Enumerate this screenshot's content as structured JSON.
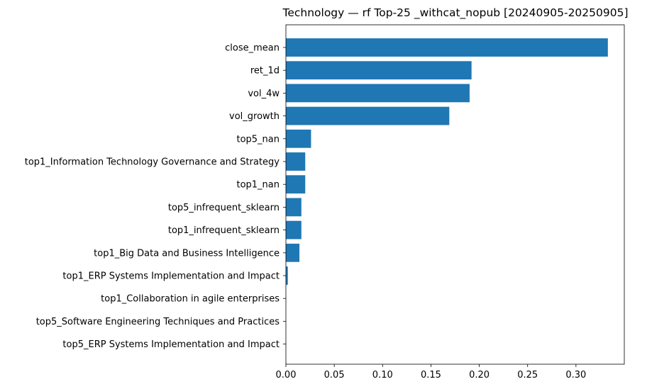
{
  "chart_data": {
    "type": "bar",
    "orientation": "horizontal",
    "title": "Technology — rf Top-25 _withcat_nopub [20240905-20250905]",
    "xlabel": "",
    "ylabel": "",
    "xlim": [
      0,
      0.35
    ],
    "xticks": [
      "0.00",
      "0.05",
      "0.10",
      "0.15",
      "0.20",
      "0.25",
      "0.30"
    ],
    "grid": false,
    "bar_color": "#1f77b4",
    "categories": [
      "close_mean",
      "ret_1d",
      "vol_4w",
      "vol_growth",
      "top5_nan",
      "top1_Information Technology Governance and Strategy",
      "top1_nan",
      "top5_infrequent_sklearn",
      "top1_infrequent_sklearn",
      "top1_Big Data and Business Intelligence",
      "top1_ERP Systems Implementation and Impact",
      "top1_Collaboration in agile enterprises",
      "top5_Software Engineering Techniques and Practices",
      "top5_ERP Systems Implementation and Impact"
    ],
    "values": [
      0.333,
      0.192,
      0.19,
      0.169,
      0.026,
      0.02,
      0.02,
      0.016,
      0.016,
      0.014,
      0.002,
      0.0,
      0.0,
      0.0
    ]
  }
}
